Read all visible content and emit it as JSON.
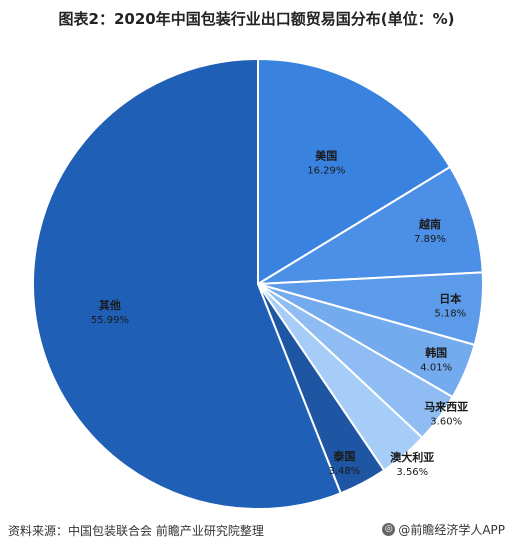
{
  "chart_data": {
    "type": "pie",
    "title": "图表2：2020年中国包装行业出口额贸易国分布(单位：%)",
    "slices": [
      {
        "name": "美国",
        "label": "16.29%",
        "value": 16.29,
        "color": "#3a82e0"
      },
      {
        "name": "越南",
        "label": "7.89%",
        "value": 7.89,
        "color": "#4b8fe6"
      },
      {
        "name": "日本",
        "label": "5.18%",
        "value": 5.18,
        "color": "#5c9be9"
      },
      {
        "name": "韩国",
        "label": "4.01%",
        "value": 4.01,
        "color": "#74aaee"
      },
      {
        "name": "马来西亚",
        "label": "3.60%",
        "value": 3.6,
        "color": "#8fbdf3"
      },
      {
        "name": "澳大利亚",
        "label": "3.56%",
        "value": 3.56,
        "color": "#a6cdf7"
      },
      {
        "name": "泰国",
        "label": "3.48%",
        "value": 3.48,
        "color": "#1f56a3"
      },
      {
        "name": "其他",
        "label": "55.99%",
        "value": 55.99,
        "color": "#1f60b6"
      }
    ]
  },
  "footer": {
    "source": "资料来源：中国包装联合会 前瞻产业研究院整理",
    "brand": "@前瞻经济学人APP"
  }
}
